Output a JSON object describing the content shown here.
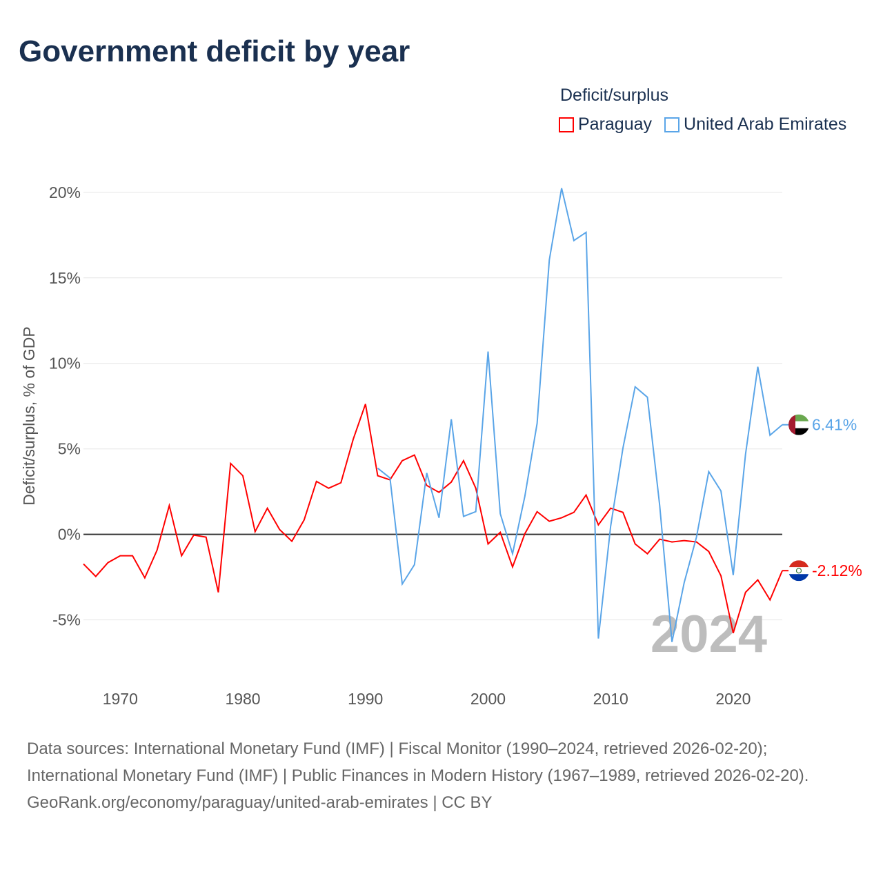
{
  "title": "Government deficit by year",
  "chart_data": {
    "type": "line",
    "title": "Government deficit by year",
    "xlabel": "",
    "ylabel": "Deficit/surplus, % of GDP",
    "xlim": [
      1967,
      2024
    ],
    "ylim": [
      -8,
      21
    ],
    "x_ticks": [
      1970,
      1980,
      1990,
      2000,
      2010,
      2020
    ],
    "y_ticks": [
      -5,
      0,
      5,
      10,
      15,
      20
    ],
    "y_tick_labels": [
      "-5%",
      "0%",
      "5%",
      "10%",
      "15%",
      "20%"
    ],
    "grid": true,
    "legend_title": "Deficit/surplus",
    "legend_placement": "top-right",
    "year_watermark": "2024",
    "series": [
      {
        "name": "Paraguay",
        "color": "#ff0000",
        "end_label": "-2.12%",
        "start_year": 1967,
        "values": [
          -1.73,
          -2.46,
          -1.65,
          -1.25,
          -1.25,
          -2.54,
          -0.93,
          1.69,
          -1.25,
          -0.04,
          -0.16,
          -3.39,
          4.15,
          3.43,
          0.16,
          1.53,
          0.28,
          -0.4,
          0.85,
          3.1,
          2.7,
          3.02,
          5.56,
          7.62,
          3.43,
          3.19,
          4.31,
          4.64,
          2.86,
          2.46,
          3.06,
          4.31,
          2.7,
          -0.56,
          0.12,
          -1.9,
          0.04,
          1.33,
          0.77,
          0.97,
          1.29,
          2.3,
          0.56,
          1.53,
          1.29,
          -0.56,
          -1.13,
          -0.28,
          -0.44,
          -0.36,
          -0.44,
          -1.0,
          -2.42,
          -5.77,
          -3.39,
          -2.66,
          -3.83,
          -2.12
        ]
      },
      {
        "name": "United Arab Emirates",
        "color": "#5aa5e8",
        "end_label": "6.41%",
        "start_year": 1991,
        "values": [
          3.87,
          3.3,
          -2.9,
          -1.77,
          3.59,
          0.97,
          6.73,
          1.05,
          1.33,
          10.69,
          1.21,
          -1.13,
          2.22,
          6.49,
          16.05,
          20.24,
          17.18,
          17.66,
          -6.09,
          0.48,
          5.04,
          8.63,
          8.02,
          1.69,
          -6.29,
          -2.82,
          -0.16,
          3.67,
          2.54,
          -2.38,
          4.68,
          9.8,
          5.8,
          6.41
        ]
      }
    ]
  },
  "footer": {
    "line1": "Data sources: International Monetary Fund (IMF) | Fiscal Monitor (1990–2024, retrieved 2026-02-20); International Monetary Fund (IMF) | Public Finances in Modern History (1967–1989, retrieved 2026-02-20).",
    "line2": "GeoRank.org/economy/paraguay/united-arab-emirates | CC BY"
  }
}
